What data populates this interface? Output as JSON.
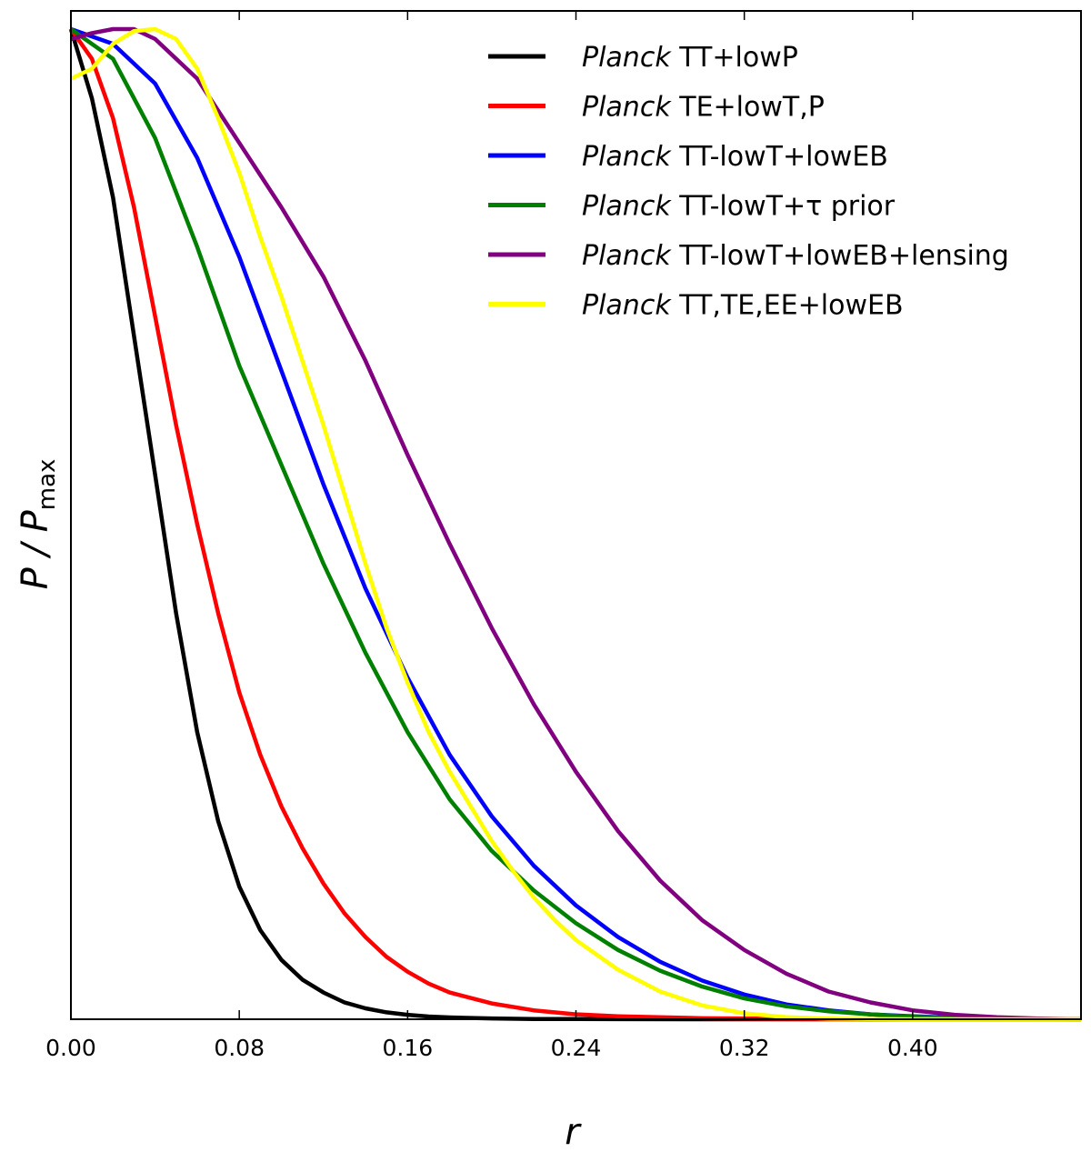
{
  "chart_data": {
    "type": "line",
    "title": "",
    "xlabel": "r",
    "ylabel": {
      "main": "P / P",
      "subscript": "max"
    },
    "xlim": [
      0.0,
      0.48
    ],
    "ylim": [
      0.0,
      1.0
    ],
    "xticks": [
      0.0,
      0.08,
      0.16,
      0.24,
      0.32,
      0.4
    ],
    "xtick_labels": [
      "0.00",
      "0.08",
      "0.16",
      "0.24",
      "0.32",
      "0.40"
    ],
    "yticks": [],
    "grid": false,
    "legend_position": "top-right",
    "series": [
      {
        "name_prefix": "Planck",
        "name_rest": "TT+lowP",
        "color": "#000000",
        "x": [
          0.0,
          0.01,
          0.02,
          0.03,
          0.04,
          0.05,
          0.06,
          0.07,
          0.08,
          0.09,
          0.1,
          0.11,
          0.12,
          0.13,
          0.14,
          0.15,
          0.16,
          0.17,
          0.18,
          0.2,
          0.22,
          0.26,
          0.3,
          0.48
        ],
        "y": [
          1.0,
          0.93,
          0.83,
          0.69,
          0.55,
          0.41,
          0.29,
          0.2,
          0.134,
          0.09,
          0.06,
          0.04,
          0.027,
          0.017,
          0.011,
          0.007,
          0.0045,
          0.0028,
          0.0018,
          0.0008,
          0.0003,
          0.0001,
          0.0,
          0.0
        ]
      },
      {
        "name_prefix": "Planck",
        "name_rest": "TE+lowT,P",
        "color": "#ff0000",
        "x": [
          0.0,
          0.01,
          0.02,
          0.03,
          0.04,
          0.05,
          0.06,
          0.07,
          0.08,
          0.09,
          0.1,
          0.11,
          0.12,
          0.13,
          0.14,
          0.15,
          0.16,
          0.17,
          0.18,
          0.2,
          0.22,
          0.24,
          0.26,
          0.3,
          0.36,
          0.48
        ],
        "y": [
          1.0,
          0.97,
          0.91,
          0.82,
          0.71,
          0.6,
          0.5,
          0.41,
          0.33,
          0.267,
          0.215,
          0.173,
          0.137,
          0.107,
          0.083,
          0.063,
          0.048,
          0.036,
          0.027,
          0.016,
          0.009,
          0.005,
          0.003,
          0.001,
          0.0003,
          0.0
        ]
      },
      {
        "name_prefix": "Planck",
        "name_rest": "TT-lowT+lowEB",
        "color": "#0000ff",
        "x": [
          0.0,
          0.02,
          0.04,
          0.06,
          0.08,
          0.1,
          0.12,
          0.14,
          0.16,
          0.18,
          0.2,
          0.22,
          0.24,
          0.26,
          0.28,
          0.3,
          0.32,
          0.34,
          0.36,
          0.38,
          0.4,
          0.42,
          0.44,
          0.48
        ],
        "y": [
          1.0,
          0.985,
          0.945,
          0.87,
          0.77,
          0.655,
          0.54,
          0.435,
          0.345,
          0.267,
          0.205,
          0.155,
          0.115,
          0.083,
          0.058,
          0.039,
          0.025,
          0.015,
          0.009,
          0.005,
          0.003,
          0.0015,
          0.0007,
          0.0
        ]
      },
      {
        "name_prefix": "Planck",
        "name_rest": "TT-lowT+τ prior",
        "color": "#008000",
        "x": [
          0.0,
          0.02,
          0.04,
          0.06,
          0.08,
          0.1,
          0.12,
          0.14,
          0.16,
          0.18,
          0.2,
          0.22,
          0.24,
          0.26,
          0.28,
          0.3,
          0.32,
          0.34,
          0.36,
          0.38,
          0.4,
          0.42,
          0.48
        ],
        "y": [
          1.0,
          0.97,
          0.89,
          0.78,
          0.66,
          0.56,
          0.46,
          0.37,
          0.29,
          0.222,
          0.17,
          0.13,
          0.097,
          0.07,
          0.049,
          0.033,
          0.021,
          0.013,
          0.008,
          0.005,
          0.0025,
          0.0012,
          0.0
        ]
      },
      {
        "name_prefix": "Planck",
        "name_rest": "TT-lowT+lowEB+lensing",
        "color": "#800080",
        "x": [
          0.0,
          0.01,
          0.02,
          0.03,
          0.04,
          0.06,
          0.08,
          0.1,
          0.12,
          0.14,
          0.16,
          0.18,
          0.2,
          0.22,
          0.24,
          0.26,
          0.28,
          0.3,
          0.32,
          0.34,
          0.36,
          0.38,
          0.4,
          0.42,
          0.44,
          0.46,
          0.48
        ],
        "y": [
          0.99,
          0.996,
          1.0,
          1.0,
          0.99,
          0.95,
          0.885,
          0.82,
          0.75,
          0.665,
          0.57,
          0.48,
          0.395,
          0.318,
          0.25,
          0.19,
          0.14,
          0.1,
          0.07,
          0.046,
          0.028,
          0.017,
          0.009,
          0.0045,
          0.002,
          0.0007,
          0.0
        ]
      },
      {
        "name_prefix": "Planck",
        "name_rest": "TT,TE,EE+lowEB",
        "color": "#ffff00",
        "x": [
          0.0,
          0.01,
          0.02,
          0.03,
          0.04,
          0.05,
          0.06,
          0.07,
          0.08,
          0.09,
          0.1,
          0.11,
          0.12,
          0.13,
          0.14,
          0.15,
          0.16,
          0.17,
          0.18,
          0.19,
          0.2,
          0.21,
          0.22,
          0.23,
          0.24,
          0.26,
          0.28,
          0.3,
          0.32,
          0.34,
          0.36,
          0.38,
          0.4,
          0.48
        ],
        "y": [
          0.95,
          0.96,
          0.985,
          0.998,
          1.0,
          0.99,
          0.96,
          0.91,
          0.855,
          0.79,
          0.73,
          0.665,
          0.6,
          0.53,
          0.46,
          0.395,
          0.34,
          0.29,
          0.25,
          0.215,
          0.18,
          0.15,
          0.123,
          0.1,
          0.08,
          0.05,
          0.028,
          0.014,
          0.006,
          0.002,
          0.0007,
          0.0002,
          0.0,
          0.0
        ]
      }
    ]
  }
}
